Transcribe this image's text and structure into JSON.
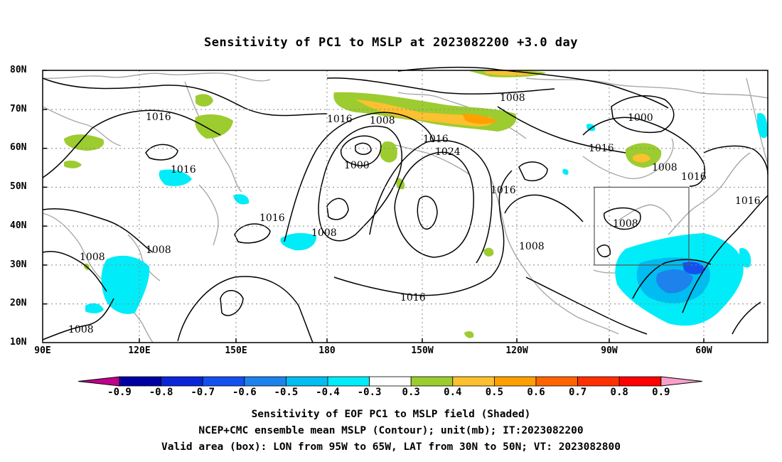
{
  "title": "Sensitivity of PC1 to MSLP at 2023082200 +3.0 day",
  "lat_labels": [
    "80N",
    "70N",
    "60N",
    "50N",
    "40N",
    "30N",
    "20N",
    "10N"
  ],
  "lon_labels": [
    "90E",
    "120E",
    "150E",
    "180",
    "150W",
    "120W",
    "90W",
    "60W"
  ],
  "contour_labels": [
    {
      "text": "1016"
    },
    {
      "text": "1016"
    },
    {
      "text": "1008"
    },
    {
      "text": "1008"
    },
    {
      "text": "1016"
    },
    {
      "text": "1008"
    },
    {
      "text": "1016"
    },
    {
      "text": "1008"
    },
    {
      "text": "1000"
    },
    {
      "text": "1016"
    },
    {
      "text": "1024"
    },
    {
      "text": "1016"
    },
    {
      "text": "1008"
    },
    {
      "text": "1016"
    },
    {
      "text": "1008"
    },
    {
      "text": "1000"
    },
    {
      "text": "1016"
    },
    {
      "text": "1008"
    },
    {
      "text": "1016"
    },
    {
      "text": "1016"
    },
    {
      "text": "1008"
    },
    {
      "text": "1008"
    }
  ],
  "colorbar": {
    "ticks": [
      "-0.9",
      "-0.8",
      "-0.7",
      "-0.6",
      "-0.5",
      "-0.4",
      "-0.3",
      "0.3",
      "0.4",
      "0.5",
      "0.6",
      "0.7",
      "0.8",
      "0.9"
    ],
    "colors": {
      "below": "#c0008a",
      "bins": [
        "#0000a0",
        "#0a26d6",
        "#1450f0",
        "#1e82ec",
        "#00bcf0",
        "#00ecf8",
        "#ffffff",
        "#9ccc30",
        "#fcc030",
        "#ffa000",
        "#ff6400",
        "#ff3000",
        "#ff0000"
      ],
      "above": "#f8a0c8"
    }
  },
  "valid_box": {
    "lon_range": [
      "95W",
      "65W"
    ],
    "lat_range": [
      "30N",
      "50N"
    ]
  },
  "captions": [
    "Sensitivity of EOF PC1 to MSLP field (Shaded)",
    "NCEP+CMC ensemble mean MSLP (Contour); unit(mb); IT:2023082200",
    "Valid area (box): LON from 95W to 65W, LAT from 30N to 50N; VT: 2023082800"
  ]
}
